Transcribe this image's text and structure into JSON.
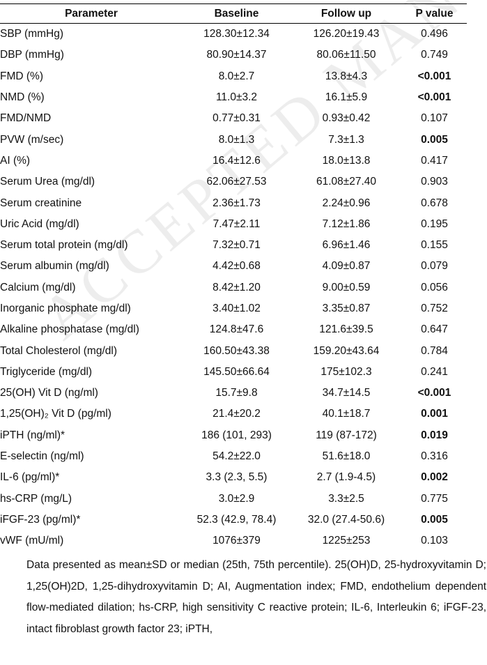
{
  "table": {
    "headers": [
      "Parameter",
      "Baseline",
      "Follow up",
      "P value"
    ],
    "rows": [
      {
        "param": "SBP (mmHg)",
        "baseline": "128.30±12.34",
        "follow": "126.20±19.43",
        "p": "0.496",
        "highlight": false,
        "bold": false
      },
      {
        "param": "DBP (mmHg)",
        "baseline": "80.90±14.37",
        "follow": "80.06±11.50",
        "p": "0.749",
        "highlight": false,
        "bold": false
      },
      {
        "param": "FMD (%)",
        "baseline": "8.0±2.7",
        "follow": "13.8±4.3",
        "p": "<0.001",
        "highlight": true,
        "bold": true
      },
      {
        "param": "NMD (%)",
        "baseline": "11.0±3.2",
        "follow": "16.1±5.9",
        "p": "<0.001",
        "highlight": true,
        "bold": true
      },
      {
        "param": "FMD/NMD",
        "baseline": "0.77±0.31",
        "follow": "0.93±0.42",
        "p": "0.107",
        "highlight": false,
        "bold": false
      },
      {
        "param": "PVW (m/sec)",
        "baseline": "8.0±1.3",
        "follow": "7.3±1.3",
        "p": "0.005",
        "highlight": true,
        "bold": true
      },
      {
        "param": "AI (%)",
        "baseline": "16.4±12.6",
        "follow": "18.0±13.8",
        "p": "0.417",
        "highlight": false,
        "bold": false
      },
      {
        "param": "Serum Urea (mg/dl)",
        "baseline": "62.06±27.53",
        "follow": "61.08±27.40",
        "p": "0.903",
        "highlight": false,
        "bold": false
      },
      {
        "param": "Serum creatinine",
        "baseline": "2.36±1.73",
        "follow": "2.24±0.96",
        "p": "0.678",
        "highlight": false,
        "bold": false
      },
      {
        "param": "Uric Acid (mg/dl)",
        "baseline": "7.47±2.11",
        "follow": "7.12±1.86",
        "p": "0.195",
        "highlight": false,
        "bold": false
      },
      {
        "param": "Serum total protein (mg/dl)",
        "baseline": "7.32±0.71",
        "follow": "6.96±1.46",
        "p": "0.155",
        "highlight": false,
        "bold": false
      },
      {
        "param": "Serum albumin (mg/dl)",
        "baseline": "4.42±0.68",
        "follow": "4.09±0.87",
        "p": "0.079",
        "highlight": false,
        "bold": false
      },
      {
        "param": "Calcium (mg/dl)",
        "baseline": "8.42±1.20",
        "follow": "9.00±0.59",
        "p": "0.056",
        "highlight": false,
        "bold": false
      },
      {
        "param": "Inorganic phosphate mg/dl)",
        "baseline": "3.40±1.02",
        "follow": "3.35±0.87",
        "p": "0.752",
        "highlight": false,
        "bold": false
      },
      {
        "param": "Alkaline phosphatase (mg/dl)",
        "baseline": "124.8±47.6",
        "follow": "121.6±39.5",
        "p": "0.647",
        "highlight": false,
        "bold": false
      },
      {
        "param": "Total Cholesterol (mg/dl)",
        "baseline": "160.50±43.38",
        "follow": "159.20±43.64",
        "p": "0.784",
        "highlight": false,
        "bold": false
      },
      {
        "param": "Triglyceride (mg/dl)",
        "baseline": "145.50±66.64",
        "follow": "175±102.3",
        "p": "0.241",
        "highlight": false,
        "bold": false
      },
      {
        "param": "25(OH) Vit D (ng/ml)",
        "baseline": "15.7±9.8",
        "follow": "34.7±14.5",
        "p": "<0.001",
        "highlight": true,
        "bold": true
      },
      {
        "param": "1,25(OH)₂ Vit D (pg/ml)",
        "baseline": "21.4±20.2",
        "follow": "40.1±18.7",
        "p": "0.001",
        "highlight": true,
        "bold": true
      },
      {
        "param": "iPTH (ng/ml)*",
        "baseline": "186 (101, 293)",
        "follow": "119 (87-172)",
        "p": "0.019",
        "highlight": true,
        "bold": true
      },
      {
        "param": "E-selectin (ng/ml)",
        "baseline": "54.2±22.0",
        "follow": "51.6±18.0",
        "p": "0.316",
        "highlight": false,
        "bold": false
      },
      {
        "param": "IL-6 (pg/ml)*",
        "baseline": "3.3 (2.3, 5.5)",
        "follow": "2.7 (1.9-4.5)",
        "p": "0.002",
        "highlight": true,
        "bold": true
      },
      {
        "param": "hs-CRP (mg/L)",
        "baseline": "3.0±2.9",
        "follow": "3.3±2.5",
        "p": "0.775",
        "highlight": false,
        "bold": false
      },
      {
        "param": "iFGF-23 (pg/ml)*",
        "baseline": "52.3 (42.9, 78.4)",
        "follow": "32.0 (27.4-50.6)",
        "p": "0.005",
        "highlight": true,
        "bold": true
      },
      {
        "param": "vWF (mU/ml)",
        "baseline": "1076±379",
        "follow": "1225±253",
        "p": "0.103",
        "highlight": false,
        "bold": false
      }
    ]
  },
  "footnote": "Data presented as mean±SD or median (25th, 75th percentile). 25(OH)D, 25-hydroxyvitamin D; 1,25(OH)2D, 1,25-dihydroxyvitamin D; AI, Augmentation index; FMD, endothelium dependent flow-mediated dilation; hs-CRP, high sensitivity C reactive protein; IL-6, Interleukin 6; iFGF-23, intact fibroblast growth factor 23; iPTH,",
  "watermark": "ACCEPTED MANUSCRIPT",
  "colors": {
    "highlight": "#fbe0e3",
    "text": "#111111"
  }
}
